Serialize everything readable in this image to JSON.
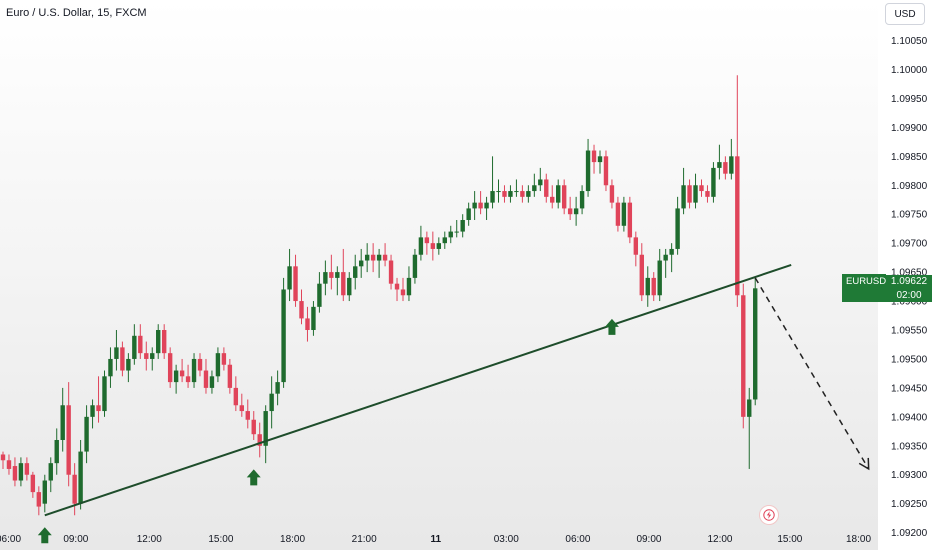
{
  "header": {
    "symbol_title": "Euro / U.S. Dollar, 15, FXCM",
    "currency_label": "USD"
  },
  "price_badge": {
    "symbol": "EURUSD",
    "price": "1.09622",
    "countdown": "02:00"
  },
  "colors": {
    "up": "#1f6b2e",
    "down": "#e0445a",
    "trendline": "#1e4d2b",
    "arrow": "#1f6b2e",
    "axis_text": "#131722",
    "background_top": "#ffffff",
    "background_bottom": "#e8e8e8"
  },
  "icons": {
    "support_marker": "up-arrow-icon",
    "forecast": "dashed-arrow-icon",
    "logo": "lightning-icon"
  },
  "chart_data": {
    "type": "candlestick",
    "title": "Euro / U.S. Dollar, 15, FXCM",
    "ylim": [
      1.0917,
      1.1012
    ],
    "y_ticks": [
      "1.10050",
      "1.10000",
      "1.09950",
      "1.09900",
      "1.09850",
      "1.09800",
      "1.09750",
      "1.09700",
      "1.09650",
      "1.09600",
      "1.09550",
      "1.09500",
      "1.09450",
      "1.09400",
      "1.09350",
      "1.09300",
      "1.09250",
      "1.09200"
    ],
    "x_ticks": [
      "06:00",
      "09:00",
      "12:00",
      "15:00",
      "18:00",
      "21:00",
      "11",
      "03:00",
      "06:00",
      "09:00",
      "12:00",
      "15:00",
      "18:00"
    ],
    "grid": false,
    "bar_interval_minutes": 15,
    "candles": [
      [
        1.09335,
        1.0934,
        1.0931,
        1.09325
      ],
      [
        1.09325,
        1.09335,
        1.093,
        1.0931
      ],
      [
        1.09315,
        1.0933,
        1.0928,
        1.0929
      ],
      [
        1.0929,
        1.0933,
        1.0928,
        1.0932
      ],
      [
        1.0932,
        1.0933,
        1.0929,
        1.093
      ],
      [
        1.093,
        1.09305,
        1.0926,
        1.0927
      ],
      [
        1.0927,
        1.0928,
        1.0923,
        1.09245
      ],
      [
        1.0925,
        1.093,
        1.09235,
        1.0929
      ],
      [
        1.0929,
        1.0933,
        1.0927,
        1.0932
      ],
      [
        1.0932,
        1.0938,
        1.093,
        1.0936
      ],
      [
        1.0936,
        1.0945,
        1.0934,
        1.0942
      ],
      [
        1.0942,
        1.0946,
        1.0928,
        1.093
      ],
      [
        1.093,
        1.0932,
        1.0923,
        1.0925
      ],
      [
        1.0925,
        1.0936,
        1.0924,
        1.0934
      ],
      [
        1.0934,
        1.0942,
        1.0932,
        1.094
      ],
      [
        1.094,
        1.0943,
        1.0938,
        1.0942
      ],
      [
        1.0942,
        1.0947,
        1.0939,
        1.0941
      ],
      [
        1.0941,
        1.0948,
        1.094,
        1.0947
      ],
      [
        1.0947,
        1.0952,
        1.0945,
        1.095
      ],
      [
        1.095,
        1.0955,
        1.0948,
        1.0952
      ],
      [
        1.0952,
        1.0953,
        1.0947,
        1.0948
      ],
      [
        1.0948,
        1.0951,
        1.0946,
        1.095
      ],
      [
        1.095,
        1.0956,
        1.0949,
        1.0954
      ],
      [
        1.0954,
        1.0956,
        1.095,
        1.0951
      ],
      [
        1.0951,
        1.0953,
        1.0948,
        1.095
      ],
      [
        1.095,
        1.0952,
        1.0948,
        1.0951
      ],
      [
        1.0951,
        1.0956,
        1.095,
        1.0955
      ],
      [
        1.0955,
        1.0956,
        1.095,
        1.0951
      ],
      [
        1.0951,
        1.0952,
        1.0945,
        1.0946
      ],
      [
        1.0946,
        1.0949,
        1.0944,
        1.0948
      ],
      [
        1.0948,
        1.095,
        1.0946,
        1.0947
      ],
      [
        1.0947,
        1.0949,
        1.0945,
        1.0946
      ],
      [
        1.0946,
        1.0951,
        1.0945,
        1.095
      ],
      [
        1.095,
        1.0951,
        1.0947,
        1.0948
      ],
      [
        1.0948,
        1.095,
        1.0944,
        1.0945
      ],
      [
        1.0945,
        1.0948,
        1.0944,
        1.0947
      ],
      [
        1.0947,
        1.0952,
        1.0946,
        1.0951
      ],
      [
        1.0951,
        1.0952,
        1.0948,
        1.0949
      ],
      [
        1.0949,
        1.095,
        1.0944,
        1.0945
      ],
      [
        1.0945,
        1.0947,
        1.0941,
        1.0942
      ],
      [
        1.0942,
        1.0944,
        1.094,
        1.0941
      ],
      [
        1.0941,
        1.0943,
        1.0938,
        1.09395
      ],
      [
        1.09395,
        1.0941,
        1.0936,
        1.0937
      ],
      [
        1.0937,
        1.0939,
        1.0933,
        1.0935
      ],
      [
        1.0935,
        1.0942,
        1.0932,
        1.0941
      ],
      [
        1.0941,
        1.0947,
        1.0938,
        1.0944
      ],
      [
        1.0944,
        1.0948,
        1.0942,
        1.0946
      ],
      [
        1.0946,
        1.0964,
        1.0945,
        1.0962
      ],
      [
        1.0962,
        1.0969,
        1.096,
        1.0966
      ],
      [
        1.0966,
        1.0968,
        1.0959,
        1.096
      ],
      [
        1.096,
        1.0962,
        1.0956,
        1.0957
      ],
      [
        1.0957,
        1.0959,
        1.0953,
        1.0955
      ],
      [
        1.0955,
        1.096,
        1.0954,
        1.0959
      ],
      [
        1.0959,
        1.0965,
        1.0958,
        1.0963
      ],
      [
        1.0963,
        1.0967,
        1.0961,
        1.0965
      ],
      [
        1.0965,
        1.0968,
        1.0962,
        1.0964
      ],
      [
        1.0964,
        1.0966,
        1.0961,
        1.0965
      ],
      [
        1.0965,
        1.0969,
        1.096,
        1.0961
      ],
      [
        1.0961,
        1.0965,
        1.096,
        1.0964
      ],
      [
        1.0964,
        1.0968,
        1.0962,
        1.0966
      ],
      [
        1.0966,
        1.0969,
        1.0964,
        1.0967
      ],
      [
        1.0967,
        1.097,
        1.0965,
        1.0968
      ],
      [
        1.0968,
        1.097,
        1.0965,
        1.0967
      ],
      [
        1.0967,
        1.0969,
        1.0964,
        1.0968
      ],
      [
        1.0968,
        1.097,
        1.0966,
        1.0967
      ],
      [
        1.0967,
        1.0968,
        1.0962,
        1.0963
      ],
      [
        1.0963,
        1.0964,
        1.096,
        1.0962
      ],
      [
        1.0962,
        1.0964,
        1.096,
        1.0961
      ],
      [
        1.0961,
        1.0966,
        1.096,
        1.0964
      ],
      [
        1.0964,
        1.0969,
        1.0963,
        1.0968
      ],
      [
        1.0968,
        1.0973,
        1.0967,
        1.0971
      ],
      [
        1.0971,
        1.0972,
        1.0968,
        1.097
      ],
      [
        1.097,
        1.0972,
        1.0967,
        1.0969
      ],
      [
        1.0969,
        1.0971,
        1.0968,
        1.097
      ],
      [
        1.097,
        1.0972,
        1.0969,
        1.0971
      ],
      [
        1.0971,
        1.0973,
        1.097,
        1.0972
      ],
      [
        1.0972,
        1.0974,
        1.0971,
        1.0972
      ],
      [
        1.0972,
        1.0975,
        1.0971,
        1.0974
      ],
      [
        1.0974,
        1.0977,
        1.0973,
        1.0976
      ],
      [
        1.0976,
        1.0979,
        1.0974,
        1.0977
      ],
      [
        1.0977,
        1.0979,
        1.0975,
        1.0976
      ],
      [
        1.0976,
        1.0978,
        1.0974,
        1.0977
      ],
      [
        1.0977,
        1.0985,
        1.0976,
        1.0979
      ],
      [
        1.0979,
        1.0981,
        1.0977,
        1.0979
      ],
      [
        1.0979,
        1.098,
        1.0977,
        1.0978
      ],
      [
        1.0978,
        1.098,
        1.0977,
        1.0979
      ],
      [
        1.0979,
        1.0981,
        1.0978,
        1.0979
      ],
      [
        1.0979,
        1.098,
        1.0977,
        1.0978
      ],
      [
        1.0978,
        1.098,
        1.0977,
        1.0979
      ],
      [
        1.0979,
        1.0982,
        1.0978,
        1.098
      ],
      [
        1.098,
        1.0983,
        1.0979,
        1.0981
      ],
      [
        1.0981,
        1.0982,
        1.0977,
        1.0978
      ],
      [
        1.0978,
        1.098,
        1.0976,
        1.0977
      ],
      [
        1.0977,
        1.0981,
        1.0976,
        1.098
      ],
      [
        1.098,
        1.0981,
        1.0975,
        1.0976
      ],
      [
        1.0976,
        1.0978,
        1.0974,
        1.0975
      ],
      [
        1.0975,
        1.0978,
        1.0973,
        1.0976
      ],
      [
        1.0976,
        1.098,
        1.0975,
        1.0979
      ],
      [
        1.0979,
        1.0988,
        1.0978,
        1.0986
      ],
      [
        1.0986,
        1.0987,
        1.0982,
        1.0984
      ],
      [
        1.0984,
        1.0986,
        1.0982,
        1.0985
      ],
      [
        1.0985,
        1.0986,
        1.0979,
        1.098
      ],
      [
        1.098,
        1.0981,
        1.0976,
        1.0977
      ],
      [
        1.0977,
        1.0978,
        1.0972,
        1.0973
      ],
      [
        1.0973,
        1.0978,
        1.0972,
        1.0977
      ],
      [
        1.0977,
        1.0978,
        1.097,
        1.0971
      ],
      [
        1.0971,
        1.0972,
        1.0966,
        1.0968
      ],
      [
        1.0968,
        1.097,
        1.096,
        1.0961
      ],
      [
        1.0961,
        1.0966,
        1.0959,
        1.0964
      ],
      [
        1.0964,
        1.0965,
        1.096,
        1.0961
      ],
      [
        1.0961,
        1.0969,
        1.096,
        1.0967
      ],
      [
        1.0967,
        1.0969,
        1.0964,
        1.0968
      ],
      [
        1.0968,
        1.097,
        1.0965,
        1.0969
      ],
      [
        1.0969,
        1.0978,
        1.0968,
        1.0976
      ],
      [
        1.0976,
        1.0983,
        1.0975,
        1.098
      ],
      [
        1.098,
        1.0981,
        1.0976,
        1.0977
      ],
      [
        1.0977,
        1.0982,
        1.0976,
        1.098
      ],
      [
        1.098,
        1.0981,
        1.0978,
        1.0979
      ],
      [
        1.0979,
        1.098,
        1.0977,
        1.0978
      ],
      [
        1.0978,
        1.0984,
        1.0977,
        1.0983
      ],
      [
        1.0983,
        1.0987,
        1.0981,
        1.0984
      ],
      [
        1.0984,
        1.0985,
        1.0981,
        1.0982
      ],
      [
        1.0982,
        1.0988,
        1.0981,
        1.0985
      ],
      [
        1.0985,
        1.0999,
        1.0959,
        1.0961
      ],
      [
        1.0961,
        1.0963,
        1.0938,
        1.094
      ],
      [
        1.094,
        1.0945,
        1.0931,
        1.0943
      ],
      [
        1.0943,
        1.0964,
        1.0942,
        1.09622
      ]
    ],
    "annotations": {
      "trendline": {
        "start": {
          "bar": 7,
          "price": 1.0923
        },
        "end": {
          "bar": 127,
          "price": 1.09645
        }
      },
      "support_arrows": [
        {
          "bar": 7,
          "price": 1.0923
        },
        {
          "bar": 42,
          "price": 1.0933
        },
        {
          "bar": 102,
          "price": 1.0959
        }
      ],
      "forecast_arrow": {
        "from": {
          "bar": 126,
          "price": 1.0964
        },
        "to": {
          "bar": 145,
          "price": 1.0931
        }
      }
    }
  }
}
